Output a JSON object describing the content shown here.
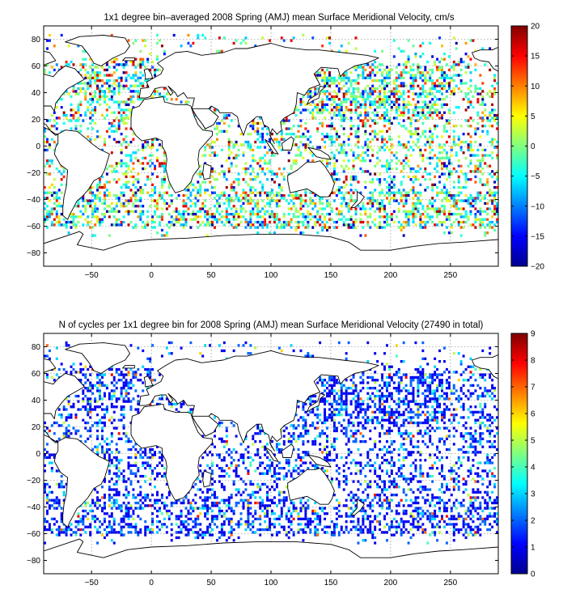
{
  "chart_data": [
    {
      "type": "heatmap",
      "title": "1x1 degree bin–averaged 2008 Spring (AMJ) mean Surface Meridional Velocity, cm/s",
      "xlabel": "",
      "ylabel": "",
      "xlim": [
        -90,
        290
      ],
      "ylim": [
        -90,
        90
      ],
      "xticks": [
        -50,
        0,
        50,
        100,
        150,
        200,
        250
      ],
      "yticks": [
        80,
        60,
        40,
        20,
        0,
        -20,
        -40,
        -60,
        -80
      ],
      "grid": true,
      "colorbar": {
        "min": -20,
        "max": 20,
        "ticks": [
          20,
          15,
          10,
          5,
          0,
          -5,
          -10,
          -15,
          -20
        ],
        "colormap": "jet"
      }
    },
    {
      "type": "heatmap",
      "title": "N of cycles per 1x1 degree bin for 2008 Spring (AMJ) mean Surface Meridional Velocity (27490 in total)",
      "xlabel": "",
      "ylabel": "",
      "xlim": [
        -90,
        290
      ],
      "ylim": [
        -90,
        90
      ],
      "xticks": [
        -50,
        0,
        50,
        100,
        150,
        200,
        250
      ],
      "yticks": [
        80,
        60,
        40,
        20,
        0,
        -20,
        -40,
        -60,
        -80
      ],
      "grid": true,
      "colorbar": {
        "min": 0,
        "max": 9,
        "ticks": [
          9,
          8,
          7,
          6,
          5,
          4,
          3,
          2,
          1,
          0
        ],
        "colormap": "jet"
      }
    }
  ]
}
